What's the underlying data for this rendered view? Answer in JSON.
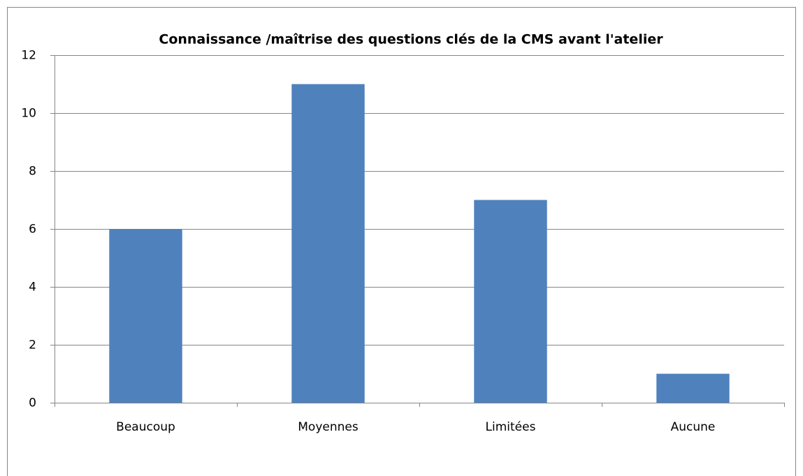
{
  "chart_data": {
    "type": "bar",
    "title": "Connaissance /maîtrise des questions clés de la CMS avant l'atelier",
    "categories": [
      "Beaucoup",
      "Moyennes",
      "Limitées",
      "Aucune"
    ],
    "values": [
      6,
      11,
      7,
      1
    ],
    "color": "#4f81bd",
    "ylim": [
      0,
      12
    ],
    "yticks": [
      0,
      2,
      4,
      6,
      8,
      10,
      12
    ],
    "grid": true
  }
}
